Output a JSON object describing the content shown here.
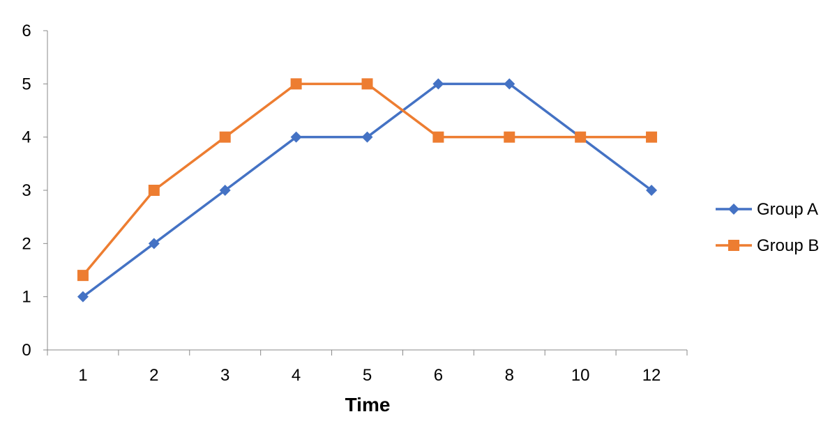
{
  "chart_data": {
    "type": "line",
    "categories": [
      "1",
      "2",
      "3",
      "4",
      "5",
      "6",
      "8",
      "10",
      "12"
    ],
    "series": [
      {
        "name": "Group A",
        "values": [
          1,
          2,
          3,
          4,
          4,
          5,
          5,
          4,
          3
        ],
        "color": "#4472C4",
        "marker": "diamond"
      },
      {
        "name": "Group B",
        "values": [
          1.4,
          3,
          4,
          5,
          5,
          4,
          4,
          4,
          4
        ],
        "color": "#ED7D31",
        "marker": "square"
      }
    ],
    "title": "",
    "xlabel": "Time",
    "ylabel": "",
    "ylim": [
      0,
      6
    ],
    "yticks": [
      "0",
      "1",
      "2",
      "3",
      "4",
      "5",
      "6"
    ],
    "grid": false,
    "legend_position": "right"
  }
}
